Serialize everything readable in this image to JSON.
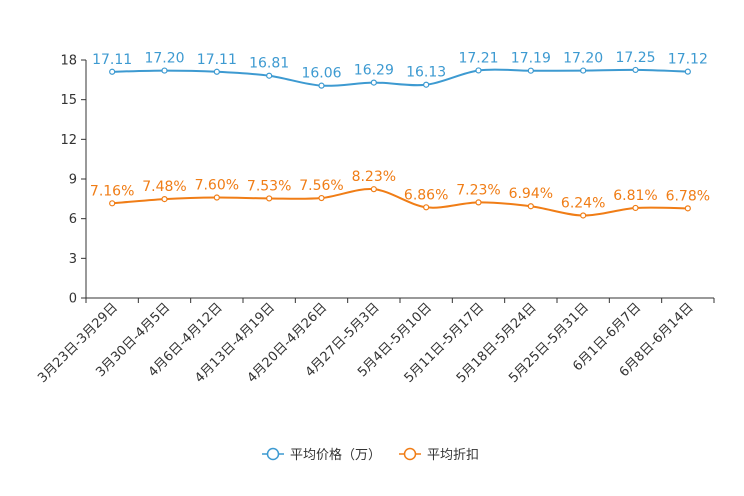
{
  "chart_data": {
    "type": "line",
    "title": "",
    "xlabel": "",
    "ylabel": "",
    "ylim": [
      0,
      18
    ],
    "yticks": [
      0,
      3,
      6,
      9,
      12,
      15,
      18
    ],
    "categories": [
      "3月23日-3月29日",
      "3月30日-4月5日",
      "4月6日-4月12日",
      "4月13日-4月19日",
      "4月20日-4月26日",
      "4月27日-5月3日",
      "5月4日-5月10日",
      "5月11日-5月17日",
      "5月18日-5月24日",
      "5月25日-5月31日",
      "6月1日-6月7日",
      "6月8日-6月14日"
    ],
    "series": [
      {
        "name": "平均价格（万）",
        "color": "#3d9ad1",
        "values": [
          17.11,
          17.2,
          17.11,
          16.81,
          16.06,
          16.29,
          16.13,
          17.21,
          17.19,
          17.2,
          17.25,
          17.12
        ],
        "labels": [
          "17.11",
          "17.20",
          "17.11",
          "16.81",
          "16.06",
          "16.29",
          "16.13",
          "17.21",
          "17.19",
          "17.20",
          "17.25",
          "17.12"
        ]
      },
      {
        "name": "平均折扣",
        "color": "#f07d16",
        "values": [
          7.16,
          7.48,
          7.6,
          7.53,
          7.56,
          8.23,
          6.86,
          7.23,
          6.94,
          6.24,
          6.81,
          6.78
        ],
        "labels": [
          "7.16%",
          "7.48%",
          "7.60%",
          "7.53%",
          "7.56%",
          "8.23%",
          "6.86%",
          "7.23%",
          "6.94%",
          "6.24%",
          "6.81%",
          "6.78%"
        ]
      }
    ],
    "legend_position": "bottom-center",
    "grid": false
  }
}
